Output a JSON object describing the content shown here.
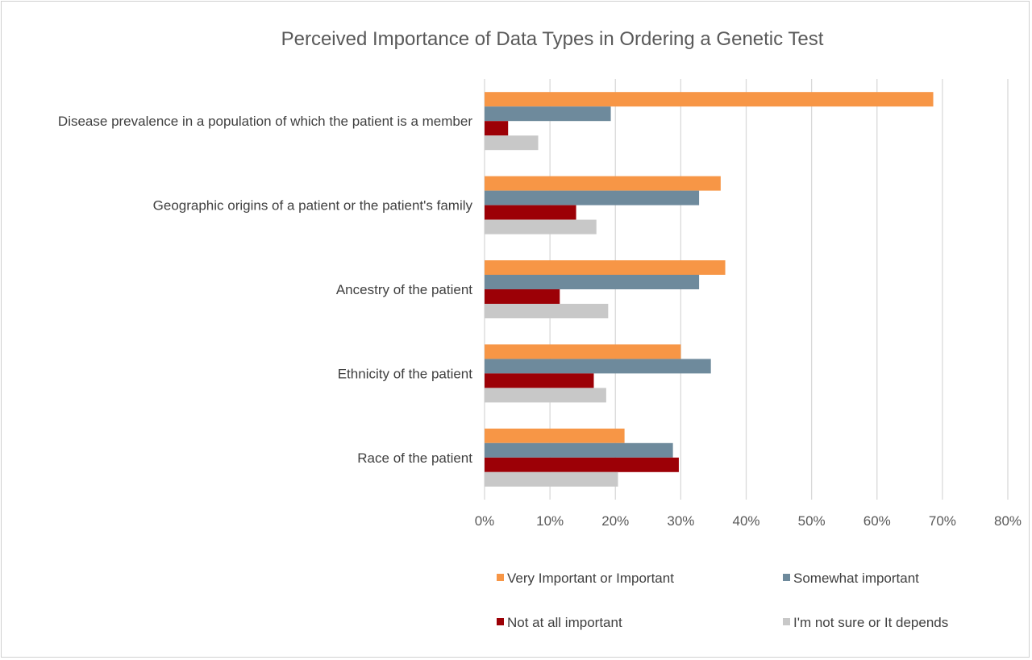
{
  "chart_data": {
    "type": "bar",
    "orientation": "horizontal",
    "title": "Perceived Importance of Data Types in Ordering a Genetic Test",
    "categories": [
      "Disease prevalence in a population of which the patient is a member",
      "Geographic origins of a patient or the patient's family",
      "Ancestry of the patient",
      "Ethnicity of the patient",
      "Race of the patient"
    ],
    "series": [
      {
        "name": "Very Important or Important",
        "color": "#F79646",
        "values": [
          68.6,
          36.1,
          36.8,
          30.0,
          21.4
        ]
      },
      {
        "name": "Somewhat important",
        "color": "#6E8A9C",
        "values": [
          19.3,
          32.8,
          32.8,
          34.6,
          28.8
        ]
      },
      {
        "name": "Not at all important",
        "color": "#9C0006",
        "values": [
          3.6,
          14.0,
          11.5,
          16.7,
          29.7
        ]
      },
      {
        "name": "I'm not sure or It depends",
        "color": "#C8C8C8",
        "values": [
          8.2,
          17.1,
          18.9,
          18.6,
          20.4
        ]
      }
    ],
    "xlim": [
      0,
      80
    ],
    "x_ticks": [
      "0%",
      "10%",
      "20%",
      "30%",
      "40%",
      "50%",
      "60%",
      "70%",
      "80%"
    ],
    "grid": true,
    "legend_position": "bottom"
  }
}
